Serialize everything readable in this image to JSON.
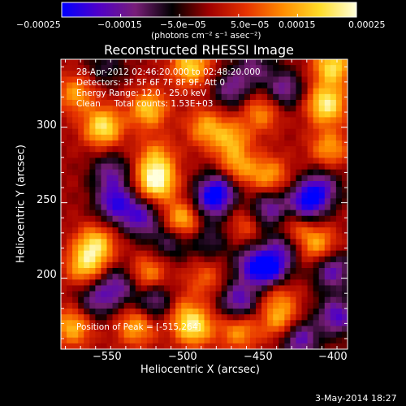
{
  "chart_data": {
    "type": "heatmap",
    "title": "Reconstructed RHESSI Image",
    "xlabel": "Heliocentric X (arcsec)",
    "ylabel": "Heliocentric Y (arcsec)",
    "xlim": [
      -578,
      -388
    ],
    "ylim": [
      153,
      345
    ],
    "xticks": [
      -550,
      -500,
      -450,
      -400
    ],
    "yticks": [
      200,
      250,
      300
    ],
    "xtick_labels": [
      "−550",
      "−500",
      "−450",
      "−400"
    ],
    "ytick_labels": [
      "200",
      "250",
      "300"
    ],
    "colorbar": {
      "range": [
        -0.00025,
        0.00025
      ],
      "ticks": [
        -0.00025,
        -0.00015,
        -5e-05,
        5e-05,
        0.00015,
        0.00025
      ],
      "tick_labels": [
        "−0.00025",
        "−0.00015",
        "−5.0e−05",
        "5.0e−05",
        "0.00015",
        "0.00025"
      ],
      "units": "(photons cm⁻² s⁻¹ asec⁻²)",
      "colormap": [
        "#0000ff",
        "#5000c8",
        "#781e78",
        "#000000",
        "#a00000",
        "#e63200",
        "#ff8c00",
        "#ffdc28",
        "#ffffdc"
      ]
    },
    "annotations": [
      "28-Apr-2012 02:46:20.000 to 02:48:20.000",
      "Detectors: 3F 5F 6F 7F 8F 9F, Att 0",
      "Energy Range: 12.0 - 25.0 keV",
      "Clean     Total counts: 1.53E+03",
      "Position of Peak = [-515,264]"
    ],
    "peak": [
      -515,
      264
    ],
    "blobs": [
      {
        "x": -515,
        "y": 264,
        "v": 1.0
      },
      {
        "x": -550,
        "y": 300,
        "v": 0.85
      },
      {
        "x": -520,
        "y": 312,
        "v": 0.7
      },
      {
        "x": -492,
        "y": 340,
        "v": 0.75
      },
      {
        "x": -498,
        "y": 238,
        "v": 0.75
      },
      {
        "x": -568,
        "y": 322,
        "v": 0.55
      },
      {
        "x": -482,
        "y": 300,
        "v": 0.55
      },
      {
        "x": -465,
        "y": 292,
        "v": 0.55
      },
      {
        "x": -462,
        "y": 272,
        "v": 0.65
      },
      {
        "x": -440,
        "y": 268,
        "v": 0.55
      },
      {
        "x": -445,
        "y": 310,
        "v": 0.5
      },
      {
        "x": -402,
        "y": 315,
        "v": 0.9
      },
      {
        "x": -398,
        "y": 340,
        "v": 0.8
      },
      {
        "x": -400,
        "y": 286,
        "v": 0.55
      },
      {
        "x": -425,
        "y": 232,
        "v": 0.55
      },
      {
        "x": -408,
        "y": 222,
        "v": 0.6
      },
      {
        "x": -555,
        "y": 222,
        "v": 0.75
      },
      {
        "x": -562,
        "y": 208,
        "v": 0.65
      },
      {
        "x": -520,
        "y": 202,
        "v": 0.55
      },
      {
        "x": -570,
        "y": 168,
        "v": 0.65
      },
      {
        "x": -528,
        "y": 168,
        "v": 0.6
      },
      {
        "x": -490,
        "y": 168,
        "v": 0.85
      },
      {
        "x": -460,
        "y": 165,
        "v": 0.55
      },
      {
        "x": -432,
        "y": 172,
        "v": 0.6
      },
      {
        "x": -435,
        "y": 190,
        "v": 0.4
      },
      {
        "x": -482,
        "y": 200,
        "v": 0.35
      },
      {
        "x": -455,
        "y": 235,
        "v": 0.35
      },
      {
        "x": -500,
        "y": 180,
        "v": 0.3
      },
      {
        "x": -515,
        "y": 280,
        "v": 0.5
      },
      {
        "x": -505,
        "y": 225,
        "v": -0.5
      },
      {
        "x": -525,
        "y": 240,
        "v": -0.7
      },
      {
        "x": -542,
        "y": 250,
        "v": -0.8
      },
      {
        "x": -545,
        "y": 270,
        "v": -0.55
      },
      {
        "x": -478,
        "y": 252,
        "v": -0.85
      },
      {
        "x": -470,
        "y": 262,
        "v": -0.6
      },
      {
        "x": -440,
        "y": 245,
        "v": -0.7
      },
      {
        "x": -415,
        "y": 250,
        "v": -0.9
      },
      {
        "x": -405,
        "y": 260,
        "v": -0.6
      },
      {
        "x": -440,
        "y": 205,
        "v": -1.0
      },
      {
        "x": -430,
        "y": 222,
        "v": -0.65
      },
      {
        "x": -460,
        "y": 185,
        "v": -0.75
      },
      {
        "x": -452,
        "y": 210,
        "v": -0.55
      },
      {
        "x": -398,
        "y": 205,
        "v": -0.7
      },
      {
        "x": -395,
        "y": 175,
        "v": -0.75
      },
      {
        "x": -420,
        "y": 160,
        "v": -0.75
      },
      {
        "x": -540,
        "y": 195,
        "v": -0.6
      },
      {
        "x": -515,
        "y": 185,
        "v": -0.65
      },
      {
        "x": -555,
        "y": 185,
        "v": -0.55
      },
      {
        "x": -465,
        "y": 325,
        "v": -0.55
      },
      {
        "x": -430,
        "y": 325,
        "v": -0.6
      },
      {
        "x": -450,
        "y": 340,
        "v": -0.45
      },
      {
        "x": -548,
        "y": 340,
        "v": -0.35
      },
      {
        "x": -480,
        "y": 225,
        "v": -0.4
      }
    ]
  },
  "footer": {
    "date": "3-May-2014 18:27"
  }
}
